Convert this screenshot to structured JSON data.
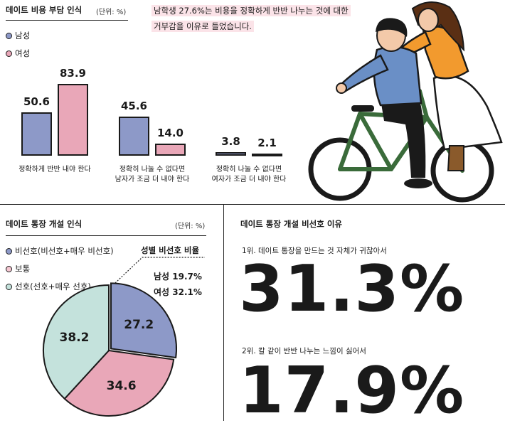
{
  "colors": {
    "male": "#8d99c8",
    "female": "#e9a7b8",
    "neutral": "#f6c7d2",
    "prefer": "#c4e2dc",
    "highlight": "#fbe3e8"
  },
  "top": {
    "title": "데이트 비용 부담 인식",
    "unit": "(단위: %)",
    "legend_male": "남성",
    "legend_female": "여성",
    "note_line1": "남학생 27.6%는 비용을 정확하게 반반 나누는 것에 대한",
    "note_line2": "거부감을 이유로 들었습니다."
  },
  "bottom_left": {
    "title": "데이트 통장 개설 인식",
    "unit": "(단위: %)",
    "legend_dislike": "비선호(비선호+매우 비선호)",
    "legend_neutral": "보통",
    "legend_prefer": "선호(선호+매우 선호)",
    "gender_title": "성별 비선호 비율",
    "male_rate": "남성 19.7%",
    "female_rate": "여성 32.1%"
  },
  "bottom_right": {
    "title": "데이트 통장 개설 비선호 이유",
    "rank1_label": "1위. 데이트 통장을 만드는 것 자체가 귀찮아서",
    "rank1_value": "31.3%",
    "rank2_label": "2위. 칼 같이 반반 나누는 느낌이 싫어서",
    "rank2_value": "17.9%"
  },
  "chart_data": [
    {
      "type": "bar",
      "title": "데이트 비용 부담 인식",
      "categories": [
        "정확하게 반반 내야 한다",
        "정확히 나눌 수 없다면\n남자가 조금 더 내야 한다",
        "정확히 나눌 수 없다면\n여자가 조금 더 내야 한다"
      ],
      "series": [
        {
          "name": "남성",
          "values": [
            50.6,
            45.6,
            3.8
          ]
        },
        {
          "name": "여성",
          "values": [
            83.9,
            14.0,
            2.1
          ]
        }
      ],
      "value_labels": [
        [
          "50.6",
          "45.6",
          "3.8"
        ],
        [
          "83.9",
          "14.0",
          "2.1"
        ]
      ],
      "ylim": [
        0,
        100
      ]
    },
    {
      "type": "pie",
      "title": "데이트 통장 개설 인식",
      "labels": [
        "비선호(비선호+매우 비선호)",
        "보통",
        "선호(선호+매우 선호)"
      ],
      "values": [
        27.2,
        34.6,
        38.2
      ],
      "value_labels": [
        "27.2",
        "34.6",
        "38.2"
      ]
    }
  ]
}
